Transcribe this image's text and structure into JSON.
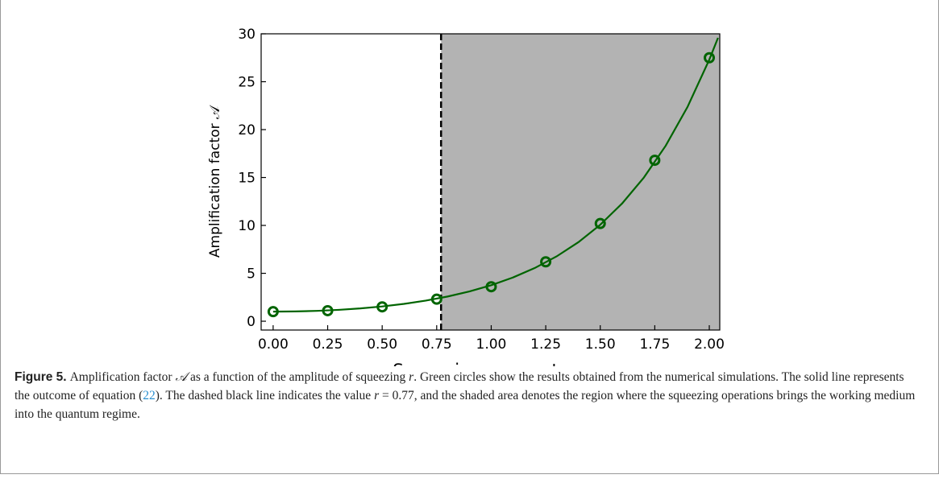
{
  "chart_data": {
    "type": "scatter",
    "xlabel": "Squeezing parameter r",
    "ylabel": "Amplification factor 𝒜",
    "xlim": [
      -0.055,
      2.048
    ],
    "ylim": [
      -0.92,
      30
    ],
    "xticks": [
      {
        "value": 0,
        "label": "0.00"
      },
      {
        "value": 0.25,
        "label": "0.25"
      },
      {
        "value": 0.5,
        "label": "0.50"
      },
      {
        "value": 0.75,
        "label": "0.75"
      },
      {
        "value": 1,
        "label": "1.00"
      },
      {
        "value": 1.25,
        "label": "1.25"
      },
      {
        "value": 1.5,
        "label": "1.50"
      },
      {
        "value": 1.75,
        "label": "1.75"
      },
      {
        "value": 2,
        "label": "2.00"
      }
    ],
    "yticks": [
      0,
      5,
      10,
      15,
      20,
      25,
      30
    ],
    "threshold": 0.77,
    "shade_color": "#b3b3b3",
    "series": [
      {
        "kind": "markers",
        "color": "#006400",
        "x": [
          0,
          0.25,
          0.5,
          0.75,
          1,
          1.25,
          1.5,
          1.75,
          2
        ],
        "values": [
          1.0,
          1.1,
          1.5,
          2.3,
          3.6,
          6.2,
          10.2,
          16.8,
          27.5
        ]
      },
      {
        "kind": "line",
        "color": "#006400",
        "x": [
          0,
          0.1,
          0.2,
          0.3,
          0.4,
          0.5,
          0.6,
          0.7,
          0.8,
          0.9,
          1.0,
          1.1,
          1.2,
          1.3,
          1.4,
          1.5,
          1.6,
          1.7,
          1.8,
          1.9,
          2.0,
          2.04
        ],
        "values": [
          1,
          1.02,
          1.081,
          1.185,
          1.337,
          1.543,
          1.811,
          2.151,
          2.577,
          3.107,
          3.762,
          4.568,
          5.557,
          6.769,
          8.253,
          10.068,
          12.287,
          14.999,
          18.313,
          22.362,
          27.308,
          29.58
        ]
      }
    ]
  },
  "caption": {
    "label": "Figure 5.",
    "parts": [
      "Amplification factor ",
      "𝒜",
      " as a function of the amplitude of squeezing ",
      "r",
      ". Green circles show the results obtained from the numerical simulations. The solid line represents the outcome of equation (",
      "22",
      "). The dashed black line indicates the value ",
      "r",
      " = 0.77, and the shaded area denotes the region where the squeezing operations brings the working medium into the quantum regime."
    ]
  }
}
